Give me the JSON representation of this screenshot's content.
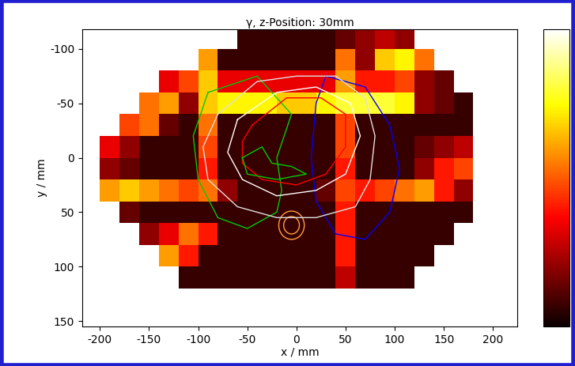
{
  "chart_data": {
    "type": "heatmap",
    "title": "γ, z-Position: 30mm",
    "x_label": "x / mm",
    "y_label": "y / mm",
    "xlim": [
      -218,
      225
    ],
    "ylim": [
      155,
      -118
    ],
    "xticks": [
      -200,
      -150,
      -100,
      -50,
      0,
      50,
      100,
      150,
      200
    ],
    "yticks": [
      -100,
      -50,
      0,
      50,
      100,
      150
    ],
    "x_edges": [
      -200,
      -180,
      -160,
      -140,
      -120,
      -100,
      -80,
      -60,
      -40,
      -20,
      0,
      20,
      40,
      60,
      80,
      100,
      120,
      140,
      160,
      180,
      200
    ],
    "y_edges": [
      -120,
      -100,
      -80,
      -60,
      -40,
      -20,
      0,
      20,
      40,
      60,
      80,
      100,
      120
    ],
    "cells": [
      [
        null,
        null,
        null,
        null,
        null,
        null,
        null,
        0.1,
        0.1,
        0.1,
        0.1,
        0.1,
        0.2,
        0.3,
        0.4,
        0.3,
        null,
        null,
        null,
        null
      ],
      [
        null,
        null,
        null,
        null,
        null,
        0.9,
        0.1,
        0.1,
        0.1,
        0.1,
        0.1,
        0.1,
        0.8,
        0.3,
        1.0,
        1.1,
        0.8,
        null,
        null,
        null
      ],
      [
        null,
        null,
        null,
        0.5,
        0.7,
        1.0,
        0.5,
        0.5,
        0.5,
        0.5,
        0.5,
        0.5,
        0.9,
        0.6,
        0.6,
        0.7,
        0.3,
        0.2,
        null,
        null
      ],
      [
        null,
        null,
        0.8,
        0.9,
        0.3,
        1.0,
        1.1,
        1.1,
        1.1,
        1.0,
        1.0,
        1.1,
        1.2,
        1.2,
        1.2,
        1.1,
        0.3,
        0.2,
        0.1,
        null
      ],
      [
        null,
        0.7,
        0.8,
        0.2,
        0.1,
        0.8,
        0.1,
        0.1,
        0.1,
        0.1,
        0.1,
        0.1,
        0.7,
        0.1,
        0.1,
        0.1,
        0.1,
        0.1,
        0.1,
        null
      ],
      [
        0.5,
        0.3,
        0.1,
        0.1,
        0.1,
        0.7,
        0.1,
        0.1,
        0.1,
        0.1,
        0.1,
        0.1,
        0.7,
        0.1,
        0.1,
        0.1,
        0.2,
        0.3,
        0.4,
        null
      ],
      [
        0.3,
        0.2,
        0.1,
        0.1,
        0.1,
        0.6,
        0.1,
        0.1,
        0.1,
        0.1,
        0.1,
        0.1,
        0.6,
        0.1,
        0.1,
        0.1,
        0.3,
        0.6,
        0.7,
        null
      ],
      [
        0.9,
        1.0,
        0.9,
        0.8,
        0.7,
        0.8,
        0.3,
        0.1,
        0.1,
        0.1,
        0.1,
        0.2,
        0.7,
        0.6,
        0.7,
        0.8,
        0.9,
        0.6,
        0.3,
        null
      ],
      [
        null,
        0.2,
        0.1,
        0.1,
        0.1,
        0.1,
        0.1,
        0.1,
        0.1,
        0.1,
        0.1,
        0.1,
        0.6,
        0.1,
        0.1,
        0.1,
        0.1,
        0.1,
        0.1,
        null
      ],
      [
        null,
        null,
        0.3,
        0.5,
        0.8,
        0.6,
        0.1,
        0.1,
        0.1,
        0.1,
        0.1,
        0.1,
        0.6,
        0.1,
        0.1,
        0.1,
        0.1,
        0.1,
        null,
        null
      ],
      [
        null,
        null,
        null,
        0.9,
        0.6,
        0.1,
        0.1,
        0.1,
        0.1,
        0.1,
        0.1,
        0.1,
        0.6,
        0.1,
        0.1,
        0.1,
        0.1,
        null,
        null,
        null
      ],
      [
        null,
        null,
        null,
        null,
        0.1,
        0.1,
        0.1,
        0.1,
        0.1,
        0.1,
        0.1,
        0.1,
        0.4,
        0.1,
        0.1,
        0.1,
        null,
        null,
        null,
        null
      ]
    ],
    "color_range": [
      0,
      1.5
    ],
    "color_ticks": [],
    "contours": [
      {
        "color": "#00cc00",
        "x": [
          -90,
          -40,
          -5,
          -20,
          -15,
          -20,
          -50,
          -80,
          -100,
          -105,
          -90
        ],
        "y": [
          -60,
          -75,
          -40,
          0,
          30,
          50,
          65,
          55,
          20,
          -20,
          -60
        ]
      },
      {
        "color": "#0000ff",
        "x": [
          30,
          70,
          95,
          105,
          95,
          70,
          40,
          20,
          15,
          20,
          30
        ],
        "y": [
          -75,
          -65,
          -30,
          10,
          50,
          75,
          70,
          40,
          0,
          -50,
          -75
        ]
      },
      {
        "color": "#e0e0e0",
        "x": [
          -80,
          -40,
          0,
          40,
          70,
          80,
          75,
          60,
          20,
          -20,
          -60,
          -90,
          -95,
          -80
        ],
        "y": [
          -40,
          -70,
          -75,
          -75,
          -55,
          -20,
          20,
          45,
          55,
          55,
          45,
          20,
          -10,
          -40
        ]
      },
      {
        "color": "#ffffff",
        "x": [
          -60,
          -20,
          20,
          55,
          65,
          50,
          20,
          -20,
          -55,
          -70,
          -60
        ],
        "y": [
          -35,
          -60,
          -65,
          -50,
          -20,
          15,
          30,
          35,
          20,
          -5,
          -35
        ]
      },
      {
        "color": "#ff0000",
        "x": [
          -45,
          -10,
          25,
          50,
          50,
          30,
          0,
          -35,
          -55,
          -55,
          -45
        ],
        "y": [
          -30,
          -55,
          -55,
          -40,
          -10,
          15,
          25,
          20,
          5,
          -15,
          -30
        ]
      },
      {
        "color": "#00cc00",
        "x": [
          -55,
          -35,
          -25,
          -5,
          10,
          -20,
          -50,
          -55
        ],
        "y": [
          0,
          -10,
          5,
          8,
          15,
          20,
          15,
          0
        ]
      }
    ],
    "circles": [
      {
        "color": "#ffa040",
        "x": -5,
        "y": 62,
        "r": 13
      },
      {
        "color": "#ffa040",
        "x": -5,
        "y": 62,
        "r": 8
      }
    ]
  }
}
